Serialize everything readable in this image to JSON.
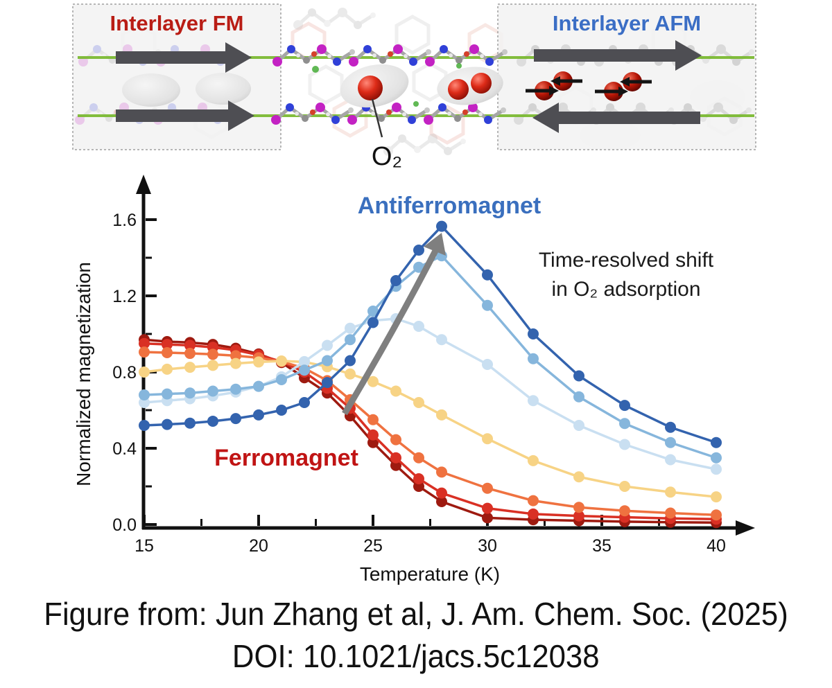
{
  "illustration": {
    "fm_label": "Interlayer FM",
    "afm_label": "Interlayer AFM",
    "o2_label": "O₂",
    "fm_color": "#b91d15",
    "afm_color": "#3b6ec5",
    "layer_line_color": "#76b82a",
    "spin_arrow_color": "#4e4e53"
  },
  "chart": {
    "ylabel": "Normalized magnetization",
    "xlabel": "Temperature (K)",
    "annotation_afm": "Antiferromagnet",
    "annotation_fm": "Ferromagnet",
    "annotation_shift_line1": "Time-resolved shift",
    "annotation_shift_line2": "in O₂ adsorption",
    "annotation_afm_color": "#3a6fbe",
    "annotation_fm_color": "#c01414",
    "shift_arrow_color": "#7f7f7f"
  },
  "chart_data": {
    "type": "line",
    "title": "",
    "xlabel": "Temperature (K)",
    "ylabel": "Normalized magnetization",
    "xlim": [
      15,
      40
    ],
    "ylim": [
      0,
      1.65
    ],
    "grid": false,
    "legend": "none",
    "x_ticks": [
      15,
      20,
      25,
      30,
      35,
      40
    ],
    "x_minor_ticks": [
      17.5,
      22.5,
      27.5,
      32.5,
      37.5
    ],
    "y_ticks": [
      0.0,
      0.4,
      0.8,
      1.2,
      1.6
    ],
    "y_minor_ticks": [
      0.2,
      0.6,
      1.0,
      1.4
    ],
    "x": [
      15,
      16,
      17,
      18,
      19,
      20,
      21,
      22,
      23,
      24,
      25,
      26,
      27,
      28,
      30,
      32,
      34,
      36,
      38,
      40
    ],
    "series": [
      {
        "name": "deep_red",
        "group": "ferromagnet",
        "color": "#9e1a10",
        "values": [
          0.97,
          0.96,
          0.955,
          0.945,
          0.925,
          0.895,
          0.85,
          0.77,
          0.69,
          0.57,
          0.43,
          0.31,
          0.2,
          0.12,
          0.035,
          0.025,
          0.02,
          0.015,
          0.012,
          0.01
        ]
      },
      {
        "name": "red",
        "group": "ferromagnet",
        "color": "#d93024",
        "values": [
          0.95,
          0.945,
          0.94,
          0.93,
          0.915,
          0.89,
          0.855,
          0.8,
          0.715,
          0.61,
          0.47,
          0.35,
          0.24,
          0.165,
          0.085,
          0.055,
          0.045,
          0.038,
          0.032,
          0.028
        ]
      },
      {
        "name": "orange",
        "group": "ferromagnet",
        "color": "#ef7240",
        "values": [
          0.905,
          0.902,
          0.898,
          0.893,
          0.886,
          0.875,
          0.855,
          0.82,
          0.755,
          0.655,
          0.55,
          0.445,
          0.35,
          0.275,
          0.19,
          0.125,
          0.09,
          0.072,
          0.06,
          0.05
        ]
      },
      {
        "name": "pale_yellow",
        "group": "transition",
        "color": "#f7d385",
        "values": [
          0.8,
          0.815,
          0.825,
          0.835,
          0.845,
          0.853,
          0.858,
          0.853,
          0.828,
          0.79,
          0.75,
          0.7,
          0.64,
          0.575,
          0.45,
          0.335,
          0.25,
          0.2,
          0.17,
          0.145
        ]
      },
      {
        "name": "pale_blue",
        "group": "antiferromagnet",
        "color": "#c9dff1",
        "values": [
          0.64,
          0.65,
          0.66,
          0.675,
          0.695,
          0.725,
          0.775,
          0.855,
          0.94,
          1.03,
          1.07,
          1.08,
          1.04,
          0.97,
          0.84,
          0.65,
          0.52,
          0.42,
          0.34,
          0.29
        ]
      },
      {
        "name": "medium_blue",
        "group": "antiferromagnet",
        "color": "#86b6dc",
        "values": [
          0.68,
          0.685,
          0.69,
          0.7,
          0.71,
          0.725,
          0.76,
          0.81,
          0.86,
          0.97,
          1.12,
          1.25,
          1.35,
          1.41,
          1.15,
          0.87,
          0.67,
          0.53,
          0.43,
          0.35
        ]
      },
      {
        "name": "deep_blue",
        "group": "antiferromagnet",
        "color": "#3363ae",
        "values": [
          0.52,
          0.525,
          0.532,
          0.542,
          0.556,
          0.575,
          0.6,
          0.64,
          0.745,
          0.86,
          1.06,
          1.28,
          1.44,
          1.565,
          1.31,
          1.0,
          0.78,
          0.625,
          0.51,
          0.43
        ]
      }
    ]
  },
  "caption": {
    "line1": "Figure from: Jun Zhang et al, J. Am. Chem. Soc. (2025)",
    "line2": "DOI: 10.1021/jacs.5c12038"
  }
}
